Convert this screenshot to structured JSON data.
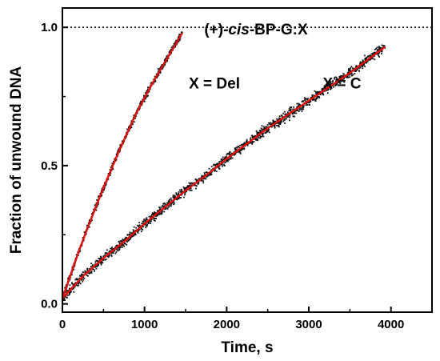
{
  "chart_data": {
    "type": "scatter",
    "title_prefix": "(+)-",
    "title_italic": "cis",
    "title_suffix": "-BP-G:X",
    "xlabel": "Time, s",
    "ylabel": "Fraction of unwound DNA",
    "xlim": [
      0,
      4500
    ],
    "ylim": [
      -0.03,
      1.07
    ],
    "xticks": [
      0,
      1000,
      2000,
      3000,
      4000
    ],
    "xtick_labels": [
      "0",
      "1000",
      "2000",
      "3000",
      "4000"
    ],
    "yticks": [
      0.0,
      0.5,
      1.0
    ],
    "ytick_labels": [
      "0.0",
      "0.5",
      "1.0"
    ],
    "reference_line": {
      "y": 1.0,
      "style": "dotted"
    },
    "grid": false,
    "point_color": "#111111",
    "fit_color": "#e01010",
    "series": [
      {
        "label": "X = Del",
        "label_x": 1540,
        "label_y": 0.8,
        "x": [
          0,
          100,
          200,
          300,
          400,
          500,
          600,
          700,
          800,
          900,
          1000,
          1100,
          1200,
          1300,
          1400,
          1460
        ],
        "y": [
          0.02,
          0.105,
          0.19,
          0.27,
          0.345,
          0.42,
          0.49,
          0.56,
          0.625,
          0.69,
          0.745,
          0.8,
          0.85,
          0.9,
          0.95,
          0.98
        ]
      },
      {
        "label": "X = C",
        "label_x": 3560,
        "label_y": 0.8,
        "x": [
          0,
          250,
          500,
          750,
          1000,
          1250,
          1500,
          1750,
          2000,
          2250,
          2500,
          2750,
          3000,
          3250,
          3500,
          3750,
          3930
        ],
        "y": [
          0.02,
          0.1,
          0.165,
          0.225,
          0.29,
          0.35,
          0.41,
          0.465,
          0.525,
          0.58,
          0.635,
          0.685,
          0.735,
          0.785,
          0.835,
          0.89,
          0.93
        ]
      }
    ]
  }
}
